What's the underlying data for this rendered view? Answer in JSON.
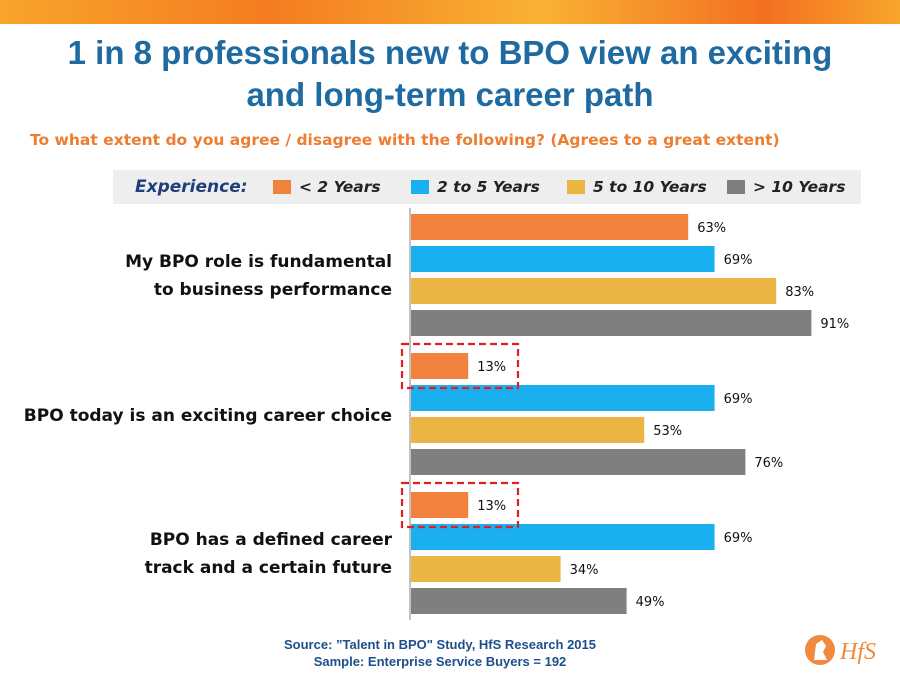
{
  "title": "1 in 8 professionals new to BPO view an exciting and long-term career path",
  "subtitle": "To what extent do you agree / disagree with the following? (Agrees to a great extent)",
  "legend": {
    "title": "Experience:",
    "items": [
      {
        "label": "< 2 Years",
        "color": "#f0823e"
      },
      {
        "label": "2 to 5 Years",
        "color": "#1ab0ef"
      },
      {
        "label": "5 to 10 Years",
        "color": "#eab543"
      },
      {
        "label": "> 10 Years",
        "color": "#7f7f7f"
      }
    ]
  },
  "chart_data": {
    "type": "bar",
    "orientation": "horizontal",
    "categories": [
      "My BPO role is fundamental to business performance",
      "BPO today is an exciting career choice",
      "BPO has a defined career track and a certain future"
    ],
    "category_lines": [
      [
        "My BPO role is fundamental",
        "to business performance"
      ],
      [
        "BPO today is an exciting career choice"
      ],
      [
        "BPO has a defined career",
        "track and a certain future"
      ]
    ],
    "series": [
      {
        "name": "< 2 Years",
        "color": "#f0823e",
        "values": [
          63,
          13,
          13
        ]
      },
      {
        "name": "2 to 5 Years",
        "color": "#1ab0ef",
        "values": [
          69,
          69,
          69
        ]
      },
      {
        "name": "5 to 10 Years",
        "color": "#eab543",
        "values": [
          83,
          53,
          34
        ]
      },
      {
        "name": "> 10 Years",
        "color": "#7f7f7f",
        "values": [
          91,
          76,
          49
        ]
      }
    ],
    "value_suffix": "%",
    "xlim": [
      0,
      100
    ],
    "highlighted": [
      {
        "series": 0,
        "category": 1
      },
      {
        "series": 0,
        "category": 2
      }
    ],
    "highlight_color": "#e02020",
    "grid": false
  },
  "footer": {
    "source": "Source: ”Talent in BPO\" Study, HfS Research 2015",
    "sample": "Sample: Enterprise Service Buyers = 192"
  },
  "logo": {
    "text": "HfS",
    "color": "#f08a3e"
  }
}
